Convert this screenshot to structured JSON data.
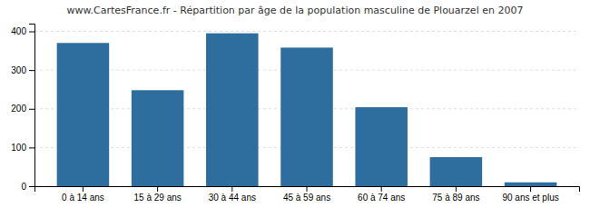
{
  "chart_data": {
    "type": "bar",
    "title": "www.CartesFrance.fr - Répartition par âge de la population masculine de Plouarzel en 2007",
    "categories": [
      "0 à 14 ans",
      "15 à 29 ans",
      "30 à 44 ans",
      "45 à 59 ans",
      "60 à 74 ans",
      "75 à 89 ans",
      "90 ans et plus"
    ],
    "values": [
      370,
      248,
      395,
      358,
      204,
      75,
      10
    ],
    "color": "#2e6e9e",
    "ylim": [
      0,
      420
    ],
    "yticks": [
      0,
      100,
      200,
      300,
      400
    ],
    "grid": true
  }
}
